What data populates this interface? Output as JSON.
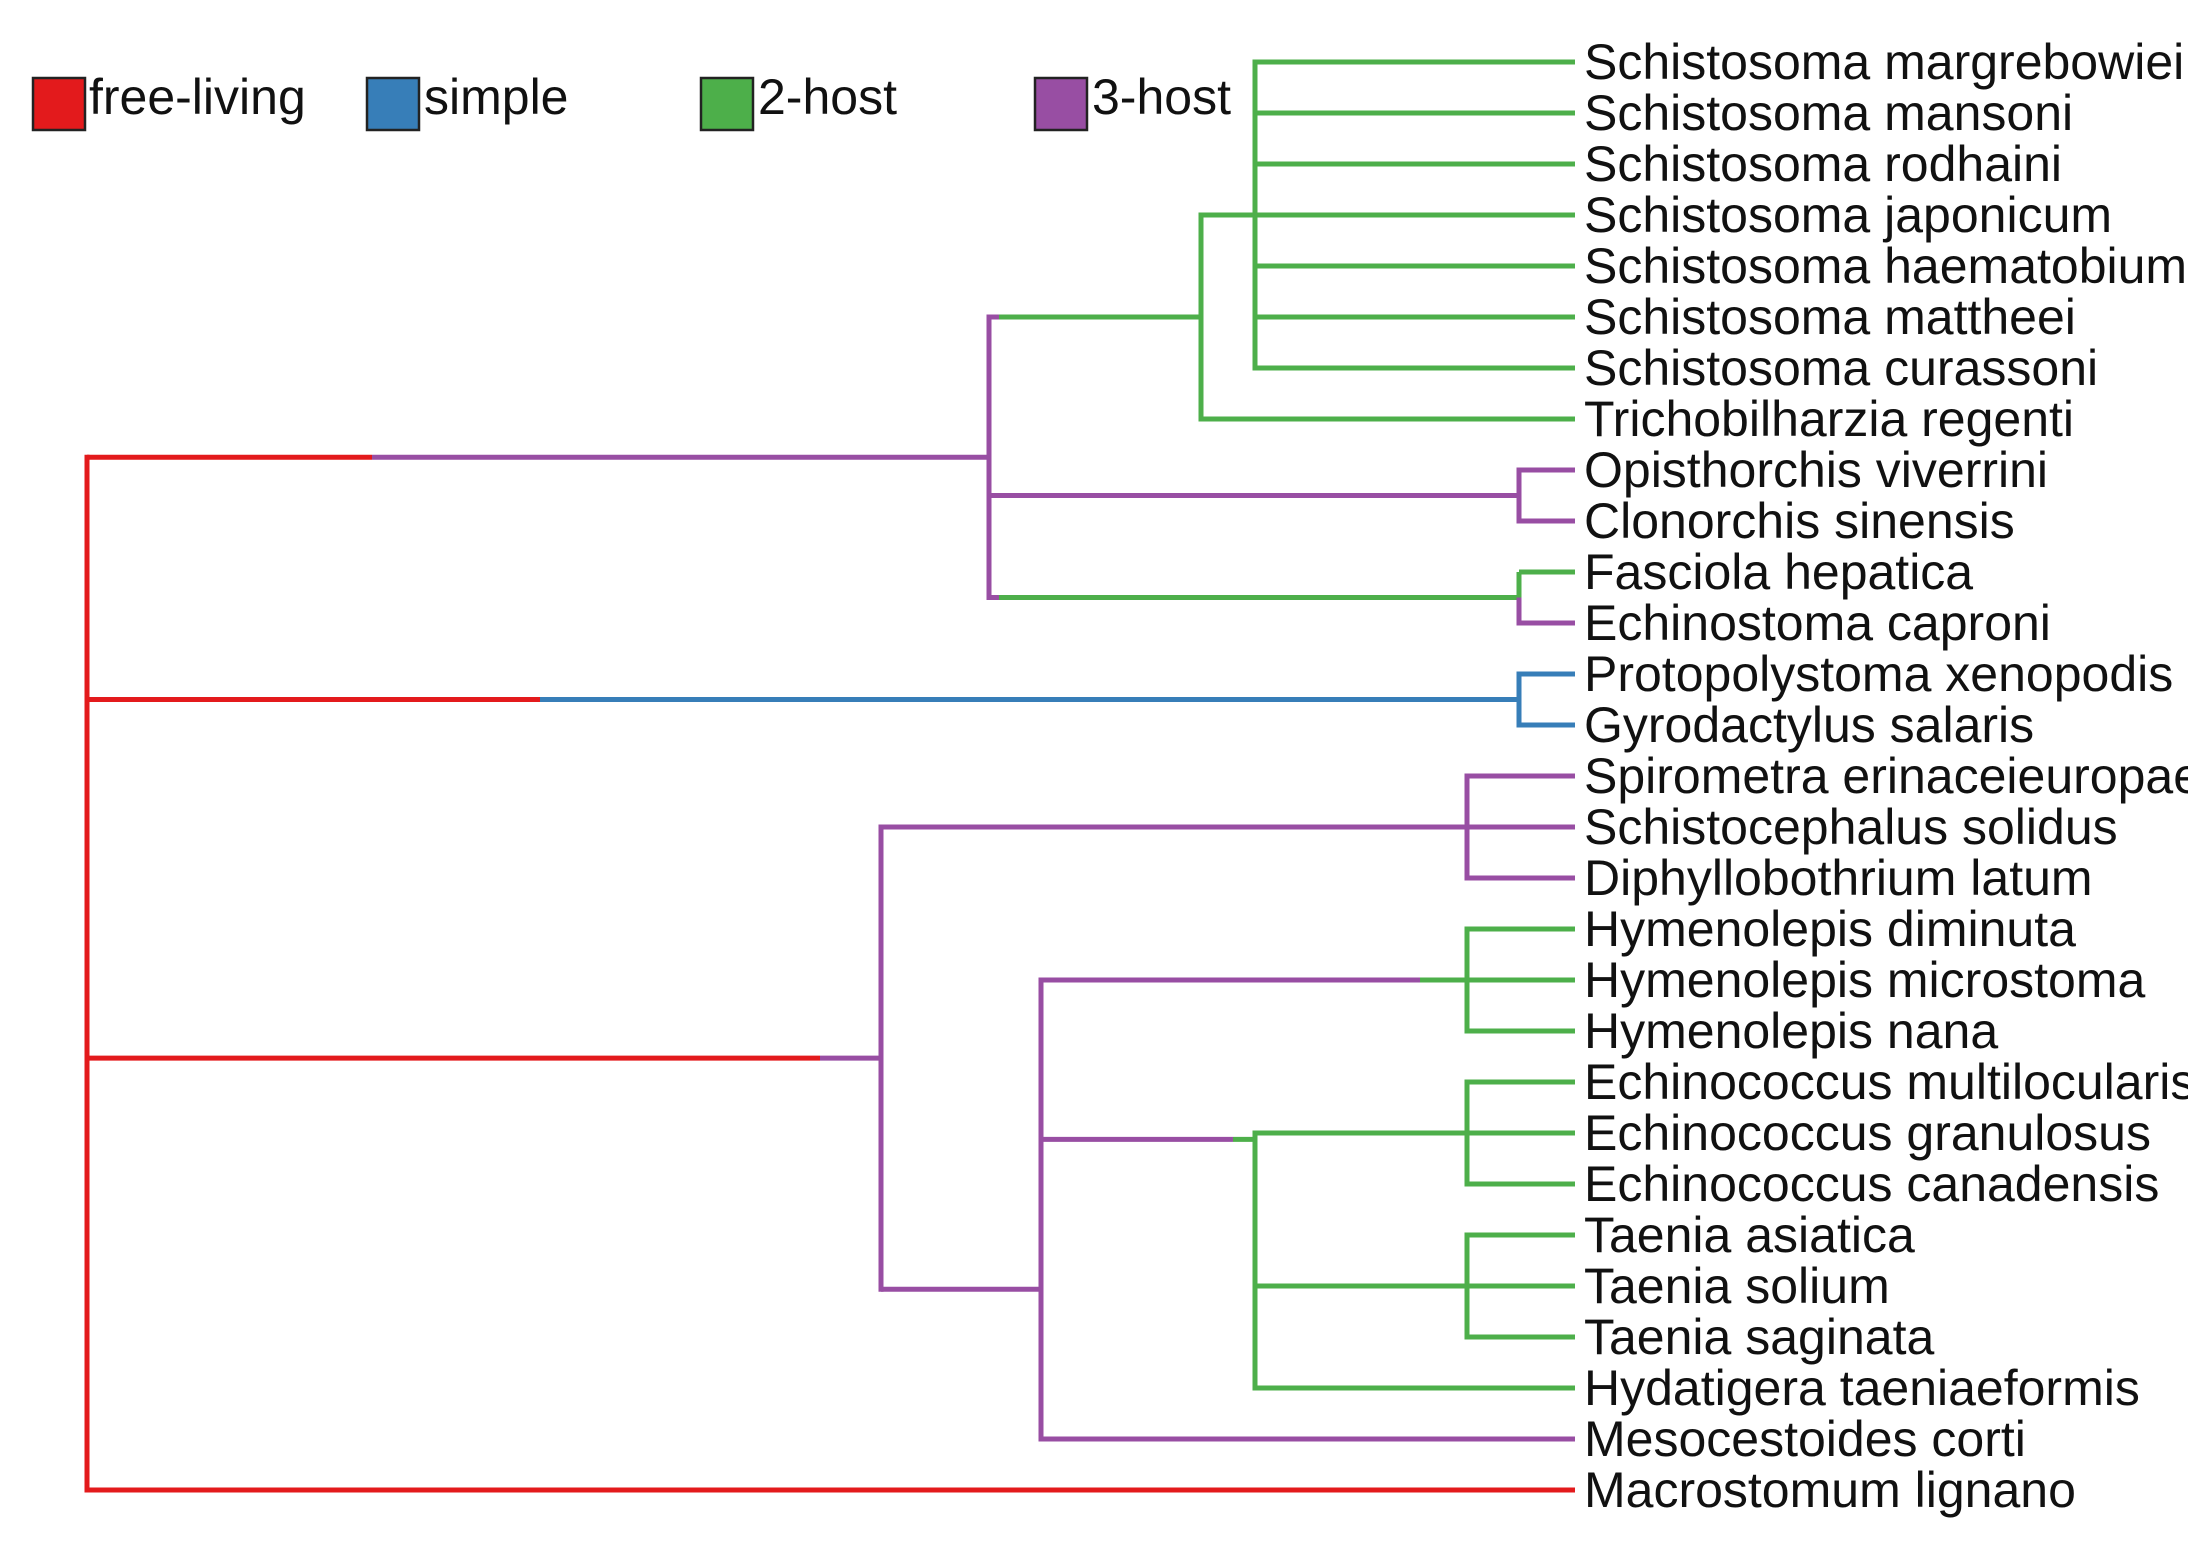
{
  "legend": [
    {
      "key": "free-living",
      "label": "free-living",
      "color": "#e31a1c"
    },
    {
      "key": "simple",
      "label": "simple",
      "color": "#377eb8"
    },
    {
      "key": "two_host",
      "label": "2-host",
      "color": "#4daf4a"
    },
    {
      "key": "three_host",
      "label": "3-host",
      "color": "#984ea3"
    }
  ],
  "taxa": [
    "Schistosoma margrebowiei",
    "Schistosoma mansoni",
    "Schistosoma rodhaini",
    "Schistosoma japonicum",
    "Schistosoma haematobium",
    "Schistosoma mattheei",
    "Schistosoma curassoni",
    "Trichobilharzia regenti",
    "Opisthorchis viverrini",
    "Clonorchis sinensis",
    "Fasciola hepatica",
    "Echinostoma caproni",
    "Protopolystoma xenopodis",
    "Gyrodactylus salaris",
    "Spirometra erinaceieuropaei",
    "Schistocephalus solidus",
    "Diphyllobothrium latum",
    "Hymenolepis diminuta",
    "Hymenolepis microstoma",
    "Hymenolepis nana",
    "Echinococcus multilocularis",
    "Echinococcus granulosus",
    "Echinococcus canadensis",
    "Taenia asiatica",
    "Taenia solium",
    "Taenia saginata",
    "Hydatigera taeniaeformis",
    "Mesocestoides corti",
    "Macrostomum lignano"
  ]
}
